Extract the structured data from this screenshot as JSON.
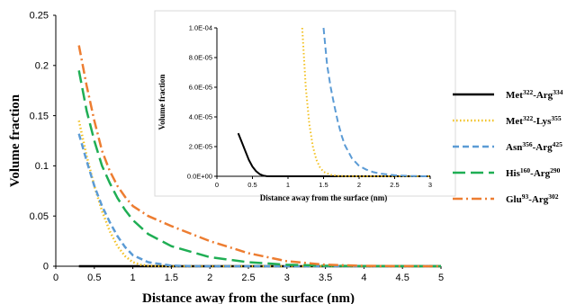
{
  "chart_data": [
    {
      "type": "line",
      "title": "",
      "xlabel": "Distance away from the surface (nm)",
      "ylabel": "Volume fraction",
      "xlim": [
        0,
        5
      ],
      "ylim": [
        0,
        0.25
      ],
      "xticks": [
        "0",
        "0.5",
        "1",
        "1.5",
        "2",
        "2.5",
        "3",
        "3.5",
        "4",
        "4.5",
        "5"
      ],
      "yticks": [
        "0",
        "0.05",
        "0.1",
        "0.15",
        "0.2",
        "0.25"
      ],
      "grid": false,
      "legend_position": "right",
      "series": [
        {
          "name": "Met322-Arg334",
          "name_parts": [
            "Met",
            "322",
            "-Arg",
            "334"
          ],
          "color": "#000000",
          "dash": "solid",
          "x": [
            0.3,
            0.6,
            1,
            2,
            3,
            4,
            5
          ],
          "y": [
            3e-05,
            2e-06,
            0,
            0,
            0,
            0,
            0
          ]
        },
        {
          "name": "Met322-Lys355",
          "name_parts": [
            "Met",
            "322",
            "-Lys",
            "355"
          ],
          "color": "#F2C122",
          "dash": "dotted",
          "x": [
            0.3,
            0.4,
            0.5,
            0.6,
            0.7,
            0.8,
            0.9,
            1.0,
            1.1,
            1.2,
            1.4,
            2,
            3,
            5
          ],
          "y": [
            0.145,
            0.11,
            0.08,
            0.055,
            0.035,
            0.02,
            0.01,
            0.004,
            0.0015,
            0.0005,
            5e-05,
            0,
            0,
            0
          ]
        },
        {
          "name": "Asn356-Arg425",
          "name_parts": [
            "Asn",
            "356",
            "-Arg",
            "425"
          ],
          "color": "#5B9BD5",
          "dash": "short-dash",
          "x": [
            0.3,
            0.4,
            0.5,
            0.6,
            0.7,
            0.8,
            0.9,
            1.0,
            1.2,
            1.5,
            1.8,
            2.0,
            2.5,
            3,
            5
          ],
          "y": [
            0.132,
            0.105,
            0.08,
            0.06,
            0.044,
            0.03,
            0.019,
            0.011,
            0.004,
            0.0006,
            6e-05,
            2e-05,
            2e-06,
            0,
            0
          ]
        },
        {
          "name": "His160-Arg290",
          "name_parts": [
            "His",
            "160",
            "-Arg",
            "290"
          ],
          "color": "#1FAE54",
          "dash": "long-dash",
          "x": [
            0.3,
            0.4,
            0.5,
            0.6,
            0.7,
            0.8,
            0.9,
            1.0,
            1.2,
            1.5,
            2.0,
            2.5,
            3.0,
            3.5,
            4.0,
            5.0
          ],
          "y": [
            0.195,
            0.155,
            0.125,
            0.1,
            0.083,
            0.068,
            0.056,
            0.046,
            0.032,
            0.02,
            0.009,
            0.004,
            0.0015,
            0.0005,
            0.0001,
            0
          ]
        },
        {
          "name": "Glu93-Arg302",
          "name_parts": [
            "Glu",
            "93",
            "-Arg",
            "302"
          ],
          "color": "#ED7D31",
          "dash": "dash-dot",
          "x": [
            0.3,
            0.4,
            0.5,
            0.6,
            0.7,
            0.8,
            0.9,
            1.0,
            1.2,
            1.5,
            2.0,
            2.5,
            3.0,
            3.5,
            4.0,
            4.5,
            5.0
          ],
          "y": [
            0.22,
            0.18,
            0.145,
            0.115,
            0.095,
            0.08,
            0.069,
            0.06,
            0.05,
            0.04,
            0.025,
            0.013,
            0.005,
            0.0015,
            0.0004,
            0.0001,
            0
          ]
        }
      ]
    },
    {
      "type": "line",
      "title": "",
      "xlabel": "Distance away from the surface (nm)",
      "ylabel": "Volume fraction",
      "xlim": [
        0,
        3
      ],
      "ylim": [
        0,
        0.0001
      ],
      "xticks": [
        "0",
        "0.5",
        "1",
        "1.5",
        "2",
        "2.5",
        "3"
      ],
      "yticks": [
        "0.0E+00",
        "2.0E-05",
        "4.0E-05",
        "6.0E-05",
        "8.0E-05",
        "1.0E-04"
      ],
      "grid": false,
      "legend_position": "none",
      "series": [
        {
          "name": "Met322-Arg334",
          "color": "#000000",
          "dash": "solid",
          "x": [
            0.3,
            0.35,
            0.4,
            0.45,
            0.5,
            0.55,
            0.6,
            0.65,
            0.7,
            0.8,
            1.0,
            1.5,
            2.0,
            2.5,
            3.0
          ],
          "y": [
            2.9e-05,
            2.3e-05,
            1.7e-05,
            1.1e-05,
            6.5e-06,
            3.5e-06,
            1.5e-06,
            5e-07,
            1e-07,
            0,
            0,
            0,
            0,
            0,
            0
          ]
        },
        {
          "name": "Met322-Lys355",
          "color": "#F2C122",
          "dash": "dotted",
          "x": [
            1.2,
            1.25,
            1.3,
            1.35,
            1.4,
            1.45,
            1.5,
            1.6,
            1.7,
            1.8,
            2.0,
            2.5,
            3.0
          ],
          "y": [
            0.0001,
            6e-05,
            3.5e-05,
            2e-05,
            1.1e-05,
            6e-06,
            3e-06,
            1e-06,
            3e-07,
            1e-07,
            0,
            0,
            0
          ]
        },
        {
          "name": "Asn356-Arg425",
          "color": "#5B9BD5",
          "dash": "short-dash",
          "x": [
            1.5,
            1.55,
            1.6,
            1.65,
            1.7,
            1.75,
            1.8,
            1.9,
            2.0,
            2.1,
            2.2,
            2.3,
            2.5,
            2.7,
            3.0
          ],
          "y": [
            0.0001,
            7.5e-05,
            6e-05,
            4.8e-05,
            3.7e-05,
            2.8e-05,
            2.1e-05,
            1.2e-05,
            7e-06,
            4.5e-06,
            2.8e-06,
            1.8e-06,
            7e-07,
            2e-07,
            0
          ]
        }
      ]
    }
  ]
}
